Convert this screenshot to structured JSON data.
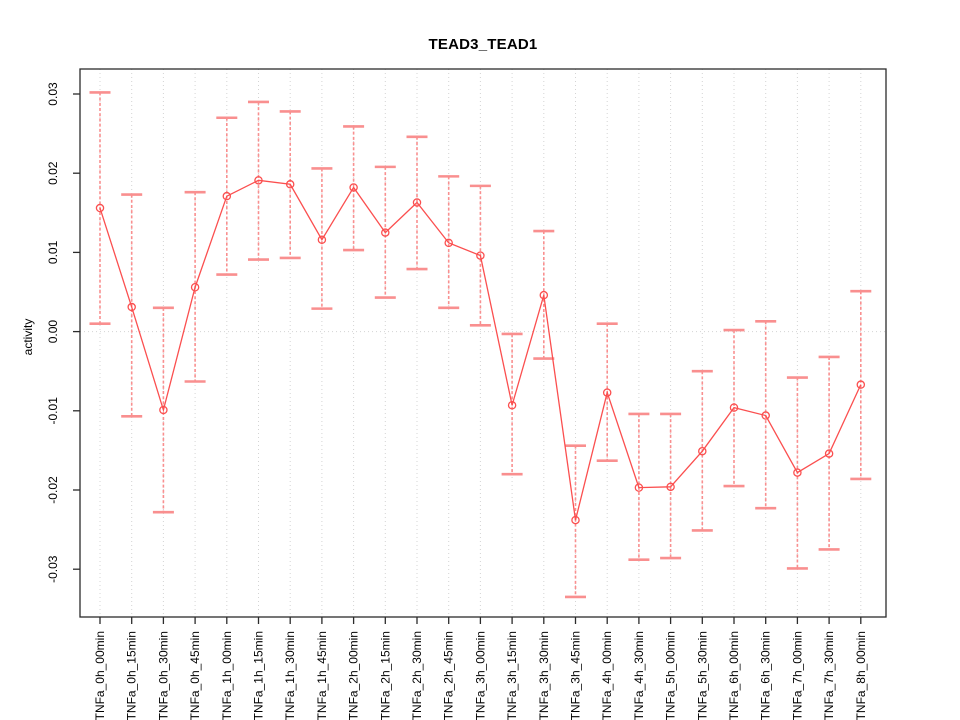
{
  "title": "TEAD3_TEAD1",
  "chart_data": {
    "type": "line",
    "title": "TEAD3_TEAD1",
    "xlabel": "",
    "ylabel": "activity",
    "ylim": [
      -0.0355,
      0.0325
    ],
    "yticks": [
      0.03,
      0.02,
      0.01,
      0.0,
      -0.01,
      -0.02,
      -0.03
    ],
    "ytick_labels": [
      "0.03",
      "0.02",
      "0.01",
      "0.00",
      "-0.01",
      "-0.02",
      "-0.03"
    ],
    "grid": "dotted vertical gridline at every category; dotted horizontal line at y=0",
    "legend": "none",
    "marker": "open-circle",
    "error_bars": true,
    "categories": [
      "TNFa_0h_00min",
      "TNFa_0h_15min",
      "TNFa_0h_30min",
      "TNFa_0h_45min",
      "TNFa_1h_00min",
      "TNFa_1h_15min",
      "TNFa_1h_30min",
      "TNFa_1h_45min",
      "TNFa_2h_00min",
      "TNFa_2h_15min",
      "TNFa_2h_30min",
      "TNFa_2h_45min",
      "TNFa_3h_00min",
      "TNFa_3h_15min",
      "TNFa_3h_30min",
      "TNFa_3h_45min",
      "TNFa_4h_00min",
      "TNFa_4h_30min",
      "TNFa_5h_00min",
      "TNFa_5h_30min",
      "TNFa_6h_00min",
      "TNFa_6h_30min",
      "TNFa_7h_00min",
      "TNFa_7h_30min",
      "TNFa_8h_00min"
    ],
    "series": [
      {
        "name": "activity",
        "values": [
          0.0156,
          0.0031,
          -0.0099,
          0.0056,
          0.0171,
          0.0191,
          0.0186,
          0.0116,
          0.0182,
          0.0125,
          0.0163,
          0.0112,
          0.0096,
          -0.0093,
          0.0046,
          -0.0238,
          -0.0077,
          -0.0197,
          -0.0196,
          -0.0151,
          -0.0096,
          -0.0106,
          -0.0178,
          -0.0154,
          -0.0067
        ],
        "err_high": [
          0.0302,
          0.0173,
          0.003,
          0.0176,
          0.027,
          0.029,
          0.0278,
          0.0206,
          0.0259,
          0.0208,
          0.0246,
          0.0196,
          0.0184,
          -0.0003,
          0.0127,
          -0.0144,
          0.001,
          -0.0104,
          -0.0104,
          -0.005,
          0.0002,
          0.0013,
          -0.0058,
          -0.0032,
          0.0051
        ],
        "err_low": [
          0.001,
          -0.0107,
          -0.0228,
          -0.0063,
          0.0072,
          0.0091,
          0.0093,
          0.0029,
          0.0103,
          0.0043,
          0.0079,
          0.003,
          0.0008,
          -0.018,
          -0.0034,
          -0.0335,
          -0.0163,
          -0.0288,
          -0.0286,
          -0.0251,
          -0.0195,
          -0.0223,
          -0.0299,
          -0.0275,
          -0.0186
        ]
      }
    ],
    "colors": {
      "line": "#fb4f4f",
      "marker": "#fb4f4f",
      "error_bar": "#f98f8f",
      "grid": "#d4d4d4",
      "zero_line": "#d4d4d4",
      "box": "#2b2b2b"
    }
  }
}
